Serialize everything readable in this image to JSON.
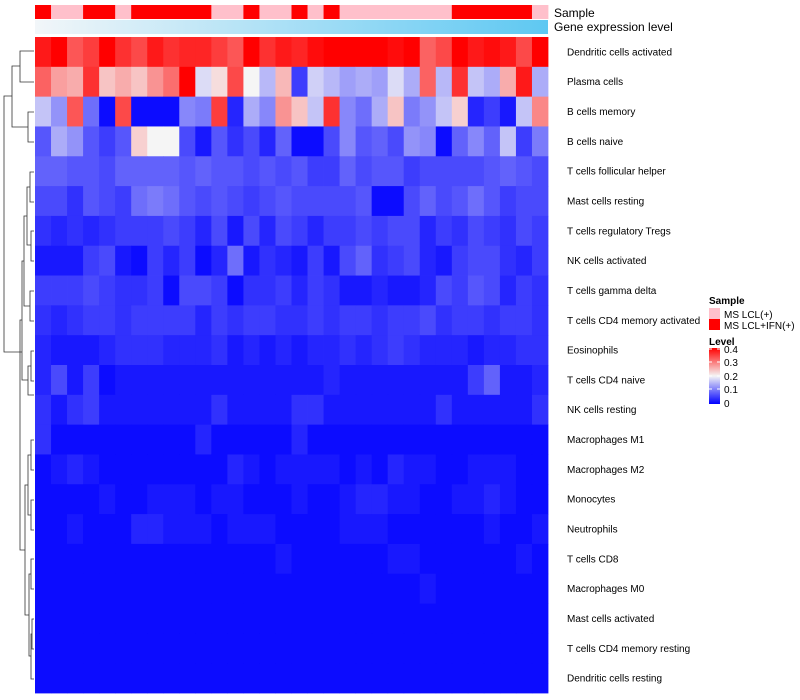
{
  "chart_data": {
    "type": "heatmap",
    "annotation_rows": [
      "Sample",
      "Gene expression level"
    ],
    "sample_annotation": [
      "MS LCL+IFN(+)",
      "MS LCL(+)",
      "MS LCL(+)",
      "MS LCL+IFN(+)",
      "MS LCL+IFN(+)",
      "MS LCL(+)",
      "MS LCL+IFN(+)",
      "MS LCL+IFN(+)",
      "MS LCL+IFN(+)",
      "MS LCL+IFN(+)",
      "MS LCL+IFN(+)",
      "MS LCL(+)",
      "MS LCL(+)",
      "MS LCL+IFN(+)",
      "MS LCL(+)",
      "MS LCL(+)",
      "MS LCL+IFN(+)",
      "MS LCL(+)",
      "MS LCL+IFN(+)",
      "MS LCL(+)",
      "MS LCL(+)",
      "MS LCL(+)",
      "MS LCL(+)",
      "MS LCL(+)",
      "MS LCL(+)",
      "MS LCL(+)",
      "MS LCL+IFN(+)",
      "MS LCL+IFN(+)",
      "MS LCL+IFN(+)",
      "MS LCL+IFN(+)",
      "MS LCL+IFN(+)",
      "MS LCL(+)"
    ],
    "rows": [
      "Dendritic cells activated",
      "Plasma cells",
      "B cells memory",
      "B cells naive",
      "T cells follicular helper",
      "Mast cells resting",
      "T cells regulatory  Tregs",
      "NK cells activated",
      "T cells gamma delta",
      "T cells CD4 memory activated",
      "Eosinophils",
      "T cells CD4 naive",
      "NK cells resting",
      "Macrophages M1",
      "Macrophages M2",
      "Monocytes",
      "Neutrophils",
      "T cells CD8",
      "Macrophages M0",
      "Mast cells activated",
      "T cells CD4 memory resting",
      "Dendritic cells resting"
    ],
    "values": [
      [
        0.38,
        0.42,
        0.33,
        0.35,
        0.4,
        0.36,
        0.34,
        0.38,
        0.36,
        0.37,
        0.37,
        0.35,
        0.33,
        0.4,
        0.36,
        0.38,
        0.37,
        0.39,
        0.41,
        0.4,
        0.41,
        0.4,
        0.39,
        0.42,
        0.32,
        0.34,
        0.41,
        0.38,
        0.39,
        0.38,
        0.34,
        0.41
      ],
      [
        0.32,
        0.27,
        0.26,
        0.36,
        0.24,
        0.26,
        0.24,
        0.28,
        0.31,
        0.4,
        0.18,
        0.22,
        0.34,
        0.2,
        0.15,
        0.25,
        0.05,
        0.17,
        0.15,
        0.13,
        0.14,
        0.13,
        0.18,
        0.14,
        0.32,
        0.15,
        0.36,
        0.16,
        0.14,
        0.26,
        0.38,
        0.14
      ],
      [
        0.16,
        0.12,
        0.33,
        0.09,
        0.01,
        0.34,
        0.01,
        0.01,
        0.01,
        0.11,
        0.1,
        0.35,
        0.03,
        0.14,
        0.11,
        0.28,
        0.24,
        0.16,
        0.36,
        0.11,
        0.09,
        0.14,
        0.24,
        0.1,
        0.12,
        0.16,
        0.23,
        0.03,
        0.05,
        0.02,
        0.16,
        0.29
      ],
      [
        0.07,
        0.14,
        0.12,
        0.07,
        0.05,
        0.07,
        0.23,
        0.2,
        0.2,
        0.06,
        0.02,
        0.07,
        0.04,
        0.06,
        0.03,
        0.08,
        0.01,
        0.01,
        0.06,
        0.11,
        0.07,
        0.08,
        0.06,
        0.12,
        0.11,
        0.01,
        0.08,
        0.11,
        0.08,
        0.16,
        0.05,
        0.1
      ],
      [
        0.08,
        0.08,
        0.07,
        0.07,
        0.06,
        0.08,
        0.08,
        0.08,
        0.08,
        0.07,
        0.08,
        0.07,
        0.07,
        0.06,
        0.07,
        0.06,
        0.07,
        0.05,
        0.05,
        0.08,
        0.06,
        0.07,
        0.07,
        0.05,
        0.06,
        0.06,
        0.06,
        0.06,
        0.07,
        0.08,
        0.07,
        0.06
      ],
      [
        0.06,
        0.06,
        0.04,
        0.07,
        0.06,
        0.05,
        0.09,
        0.1,
        0.09,
        0.07,
        0.06,
        0.07,
        0.06,
        0.05,
        0.06,
        0.07,
        0.06,
        0.06,
        0.06,
        0.06,
        0.07,
        0.01,
        0.01,
        0.06,
        0.08,
        0.06,
        0.07,
        0.09,
        0.07,
        0.05,
        0.06,
        0.06
      ],
      [
        0.04,
        0.03,
        0.04,
        0.03,
        0.04,
        0.05,
        0.05,
        0.05,
        0.06,
        0.05,
        0.03,
        0.06,
        0.02,
        0.06,
        0.03,
        0.06,
        0.05,
        0.03,
        0.05,
        0.05,
        0.06,
        0.05,
        0.06,
        0.06,
        0.03,
        0.05,
        0.04,
        0.06,
        0.05,
        0.04,
        0.06,
        0.05
      ],
      [
        0.02,
        0.02,
        0.02,
        0.05,
        0.06,
        0.02,
        0.01,
        0.05,
        0.03,
        0.05,
        0.01,
        0.03,
        0.09,
        0.02,
        0.04,
        0.03,
        0.02,
        0.05,
        0.02,
        0.06,
        0.08,
        0.04,
        0.05,
        0.06,
        0.03,
        0.02,
        0.05,
        0.06,
        0.06,
        0.04,
        0.03,
        0.05
      ],
      [
        0.05,
        0.05,
        0.05,
        0.06,
        0.05,
        0.04,
        0.04,
        0.05,
        0.01,
        0.06,
        0.06,
        0.05,
        0.01,
        0.04,
        0.04,
        0.05,
        0.03,
        0.05,
        0.04,
        0.02,
        0.02,
        0.03,
        0.02,
        0.02,
        0.03,
        0.06,
        0.05,
        0.07,
        0.06,
        0.03,
        0.05,
        0.04
      ],
      [
        0.04,
        0.03,
        0.04,
        0.05,
        0.05,
        0.04,
        0.05,
        0.05,
        0.05,
        0.05,
        0.03,
        0.05,
        0.04,
        0.05,
        0.05,
        0.04,
        0.04,
        0.05,
        0.04,
        0.05,
        0.05,
        0.04,
        0.05,
        0.05,
        0.06,
        0.04,
        0.05,
        0.05,
        0.04,
        0.05,
        0.05,
        0.04
      ],
      [
        0.03,
        0.02,
        0.02,
        0.02,
        0.03,
        0.04,
        0.04,
        0.04,
        0.03,
        0.03,
        0.03,
        0.04,
        0.02,
        0.03,
        0.02,
        0.03,
        0.02,
        0.03,
        0.03,
        0.04,
        0.03,
        0.04,
        0.05,
        0.04,
        0.03,
        0.03,
        0.03,
        0.02,
        0.03,
        0.03,
        0.04,
        0.04
      ],
      [
        0.03,
        0.06,
        0.02,
        0.05,
        0.01,
        0.02,
        0.02,
        0.02,
        0.02,
        0.02,
        0.02,
        0.02,
        0.02,
        0.02,
        0.02,
        0.02,
        0.02,
        0.02,
        0.03,
        0.02,
        0.02,
        0.02,
        0.02,
        0.02,
        0.02,
        0.02,
        0.02,
        0.05,
        0.08,
        0.02,
        0.02,
        0.03
      ],
      [
        0.04,
        0.02,
        0.04,
        0.05,
        0.02,
        0.02,
        0.02,
        0.02,
        0.02,
        0.02,
        0.02,
        0.04,
        0.02,
        0.02,
        0.02,
        0.02,
        0.04,
        0.04,
        0.02,
        0.02,
        0.02,
        0.02,
        0.02,
        0.02,
        0.02,
        0.04,
        0.02,
        0.02,
        0.02,
        0.02,
        0.02,
        0.04
      ],
      [
        0.04,
        0.01,
        0.01,
        0.01,
        0.01,
        0.01,
        0.01,
        0.01,
        0.01,
        0.01,
        0.03,
        0.01,
        0.01,
        0.01,
        0.01,
        0.01,
        0.03,
        0.01,
        0.01,
        0.01,
        0.01,
        0.01,
        0.01,
        0.01,
        0.01,
        0.01,
        0.01,
        0.01,
        0.01,
        0.01,
        0.01,
        0.01
      ],
      [
        0.01,
        0.02,
        0.03,
        0.02,
        0.01,
        0.01,
        0.01,
        0.01,
        0.01,
        0.01,
        0.01,
        0.01,
        0.03,
        0.02,
        0.01,
        0.02,
        0.02,
        0.02,
        0.02,
        0.01,
        0.02,
        0.01,
        0.03,
        0.02,
        0.02,
        0.01,
        0.01,
        0.02,
        0.02,
        0.02,
        0.01,
        0.01
      ],
      [
        0.01,
        0.01,
        0.01,
        0.01,
        0.02,
        0.01,
        0.01,
        0.02,
        0.02,
        0.02,
        0.01,
        0.02,
        0.02,
        0.01,
        0.01,
        0.01,
        0.02,
        0.01,
        0.01,
        0.02,
        0.03,
        0.03,
        0.02,
        0.02,
        0.01,
        0.01,
        0.02,
        0.02,
        0.03,
        0.02,
        0.01,
        0.01
      ],
      [
        0.01,
        0.01,
        0.02,
        0.01,
        0.01,
        0.01,
        0.03,
        0.03,
        0.02,
        0.02,
        0.02,
        0.01,
        0.02,
        0.02,
        0.02,
        0.01,
        0.01,
        0.01,
        0.01,
        0.02,
        0.02,
        0.02,
        0.01,
        0.01,
        0.01,
        0.01,
        0.01,
        0.01,
        0.02,
        0.01,
        0.01,
        0.02
      ],
      [
        0.01,
        0.01,
        0.01,
        0.01,
        0.01,
        0.01,
        0.01,
        0.01,
        0.01,
        0.01,
        0.01,
        0.01,
        0.01,
        0.01,
        0.01,
        0.02,
        0.01,
        0.01,
        0.01,
        0.01,
        0.01,
        0.01,
        0.02,
        0.02,
        0.01,
        0.01,
        0.01,
        0.01,
        0.01,
        0.01,
        0.02,
        0.01
      ],
      [
        0.01,
        0.01,
        0.01,
        0.01,
        0.01,
        0.01,
        0.01,
        0.01,
        0.01,
        0.01,
        0.01,
        0.01,
        0.01,
        0.01,
        0.01,
        0.01,
        0.01,
        0.01,
        0.01,
        0.01,
        0.01,
        0.01,
        0.01,
        0.01,
        0.02,
        0.01,
        0.01,
        0.01,
        0.01,
        0.01,
        0.01,
        0.01
      ],
      [
        0.01,
        0.01,
        0.01,
        0.01,
        0.01,
        0.01,
        0.01,
        0.01,
        0.01,
        0.01,
        0.01,
        0.01,
        0.01,
        0.01,
        0.01,
        0.01,
        0.01,
        0.01,
        0.01,
        0.01,
        0.01,
        0.01,
        0.01,
        0.01,
        0.01,
        0.01,
        0.01,
        0.01,
        0.01,
        0.01,
        0.01,
        0.01
      ],
      [
        0.01,
        0.01,
        0.01,
        0.01,
        0.01,
        0.01,
        0.01,
        0.01,
        0.01,
        0.01,
        0.01,
        0.01,
        0.01,
        0.01,
        0.01,
        0.01,
        0.01,
        0.01,
        0.01,
        0.01,
        0.01,
        0.01,
        0.01,
        0.01,
        0.01,
        0.01,
        0.01,
        0.01,
        0.01,
        0.01,
        0.01,
        0.01
      ],
      [
        0.01,
        0.01,
        0.01,
        0.01,
        0.01,
        0.01,
        0.01,
        0.01,
        0.01,
        0.01,
        0.01,
        0.01,
        0.01,
        0.01,
        0.01,
        0.01,
        0.01,
        0.01,
        0.01,
        0.01,
        0.01,
        0.01,
        0.01,
        0.01,
        0.01,
        0.01,
        0.01,
        0.01,
        0.01,
        0.01,
        0.01,
        0.01
      ]
    ],
    "color_scale": {
      "min": 0,
      "mid": 0.2,
      "max": 0.4,
      "low_color": "#0000ff",
      "mid_color": "#f5f5f5",
      "high_color": "#ff0000"
    },
    "legend_sample": {
      "title": "Sample",
      "items": [
        {
          "label": "MS LCL(+)",
          "color": "#ffc0cb"
        },
        {
          "label": "MS LCL+IFN(+)",
          "color": "#ff0000"
        }
      ]
    },
    "legend_level": {
      "title": "Level",
      "ticks": [
        "0.4",
        "0.3",
        "0.2",
        "0.1",
        "0"
      ]
    },
    "expression_bar_colors": [
      "#f2f6f9",
      "#5ec8f2"
    ]
  }
}
